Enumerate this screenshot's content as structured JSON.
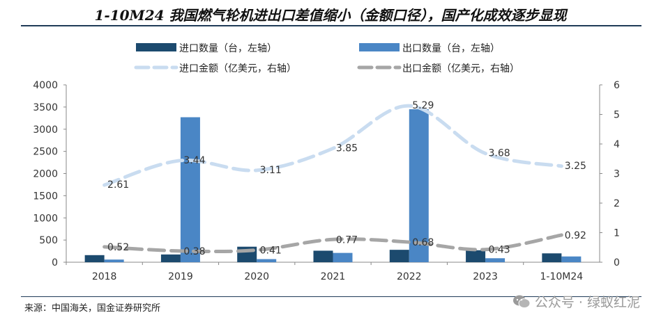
{
  "title": "1-10M24 我国燃气轮机进出口差值缩小（金额口径），国产化成效逐步显现",
  "source": "来源：中国海关，国金证券研究所",
  "watermark": {
    "text": "公众号 · 绿蚁红泥",
    "icon": "wechat-icon"
  },
  "chart_data": {
    "type": "bar",
    "categories": [
      "2018",
      "2019",
      "2020",
      "2021",
      "2022",
      "2023",
      "1-10M24"
    ],
    "y_left": {
      "ylim": [
        0,
        4000
      ],
      "ticks": [
        0,
        500,
        1000,
        1500,
        2000,
        2500,
        3000,
        3500,
        4000
      ]
    },
    "y_right": {
      "ylim": [
        0,
        6
      ],
      "ticks": [
        0,
        1,
        2,
        3,
        4,
        5,
        6
      ]
    },
    "series": [
      {
        "name": "进口数量（台，左轴）",
        "kind": "bar",
        "axis": "left",
        "color": "#1c4a6e",
        "values": [
          160,
          175,
          350,
          260,
          280,
          270,
          200
        ]
      },
      {
        "name": "出口数量（台，左轴）",
        "kind": "bar",
        "axis": "left",
        "color": "#4a86c5",
        "values": [
          60,
          3270,
          70,
          210,
          3450,
          90,
          130
        ]
      },
      {
        "name": "进口金额（亿美元，右轴）",
        "kind": "line",
        "axis": "right",
        "color": "#c9dcf0",
        "values": [
          2.61,
          3.44,
          3.11,
          3.85,
          5.29,
          3.68,
          3.25
        ],
        "labels": [
          "2.61",
          "3.44",
          "3.11",
          "3.85",
          "5.29",
          "3.68",
          "3.25"
        ]
      },
      {
        "name": "出口金额（亿美元，右轴）",
        "kind": "line",
        "axis": "right",
        "color": "#a6a6a6",
        "values": [
          0.52,
          0.38,
          0.41,
          0.77,
          0.68,
          0.43,
          0.92
        ],
        "labels": [
          "0.52",
          "0.38",
          "0.41",
          "0.77",
          "0.68",
          "0.43",
          "0.92"
        ]
      }
    ],
    "legend_position": "top"
  }
}
